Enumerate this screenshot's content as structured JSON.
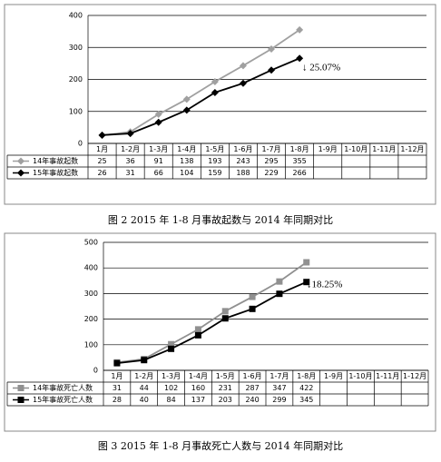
{
  "chart_data": [
    {
      "type": "line",
      "caption": "图 2  2015 年 1-8 月事故起数与 2014 年同期对比",
      "categories": [
        "1月",
        "1-2月",
        "1-3月",
        "1-4月",
        "1-5月",
        "1-6月",
        "1-7月",
        "1-8月",
        "1-9月",
        "1-10月",
        "1-11月",
        "1-12月"
      ],
      "series": [
        {
          "name": "14年事故起数",
          "color": "#a0a0a0",
          "marker": "diamond",
          "values": [
            25,
            36,
            91,
            138,
            193,
            243,
            295,
            355,
            null,
            null,
            null,
            null
          ]
        },
        {
          "name": "15年事故起数",
          "color": "#000000",
          "marker": "diamond",
          "values": [
            26,
            31,
            66,
            104,
            159,
            188,
            229,
            266,
            null,
            null,
            null,
            null
          ]
        }
      ],
      "ylim": [
        0,
        400
      ],
      "yticks": [
        0,
        100,
        200,
        300,
        400
      ],
      "grid": true,
      "annotation": "↓ 25.07%"
    },
    {
      "type": "line",
      "caption": "图 3  2015 年 1-8 月事故死亡人数与 2014 年同期对比",
      "categories": [
        "1月",
        "1-2月",
        "1-3月",
        "1-4月",
        "1-5月",
        "1-6月",
        "1-7月",
        "1-8月",
        "1-9月",
        "1-10月",
        "1-11月",
        "1-12月"
      ],
      "series": [
        {
          "name": "14年事故死亡人数",
          "color": "#909090",
          "marker": "square",
          "values": [
            31,
            44,
            102,
            160,
            231,
            287,
            347,
            422,
            null,
            null,
            null,
            null
          ]
        },
        {
          "name": "15年事故死亡人数",
          "color": "#000000",
          "marker": "square",
          "values": [
            28,
            40,
            84,
            137,
            203,
            240,
            299,
            345,
            null,
            null,
            null,
            null
          ]
        }
      ],
      "ylim": [
        0,
        500
      ],
      "yticks": [
        0,
        100,
        200,
        300,
        400,
        500
      ],
      "grid": true,
      "annotation": "↓18.25%"
    }
  ]
}
